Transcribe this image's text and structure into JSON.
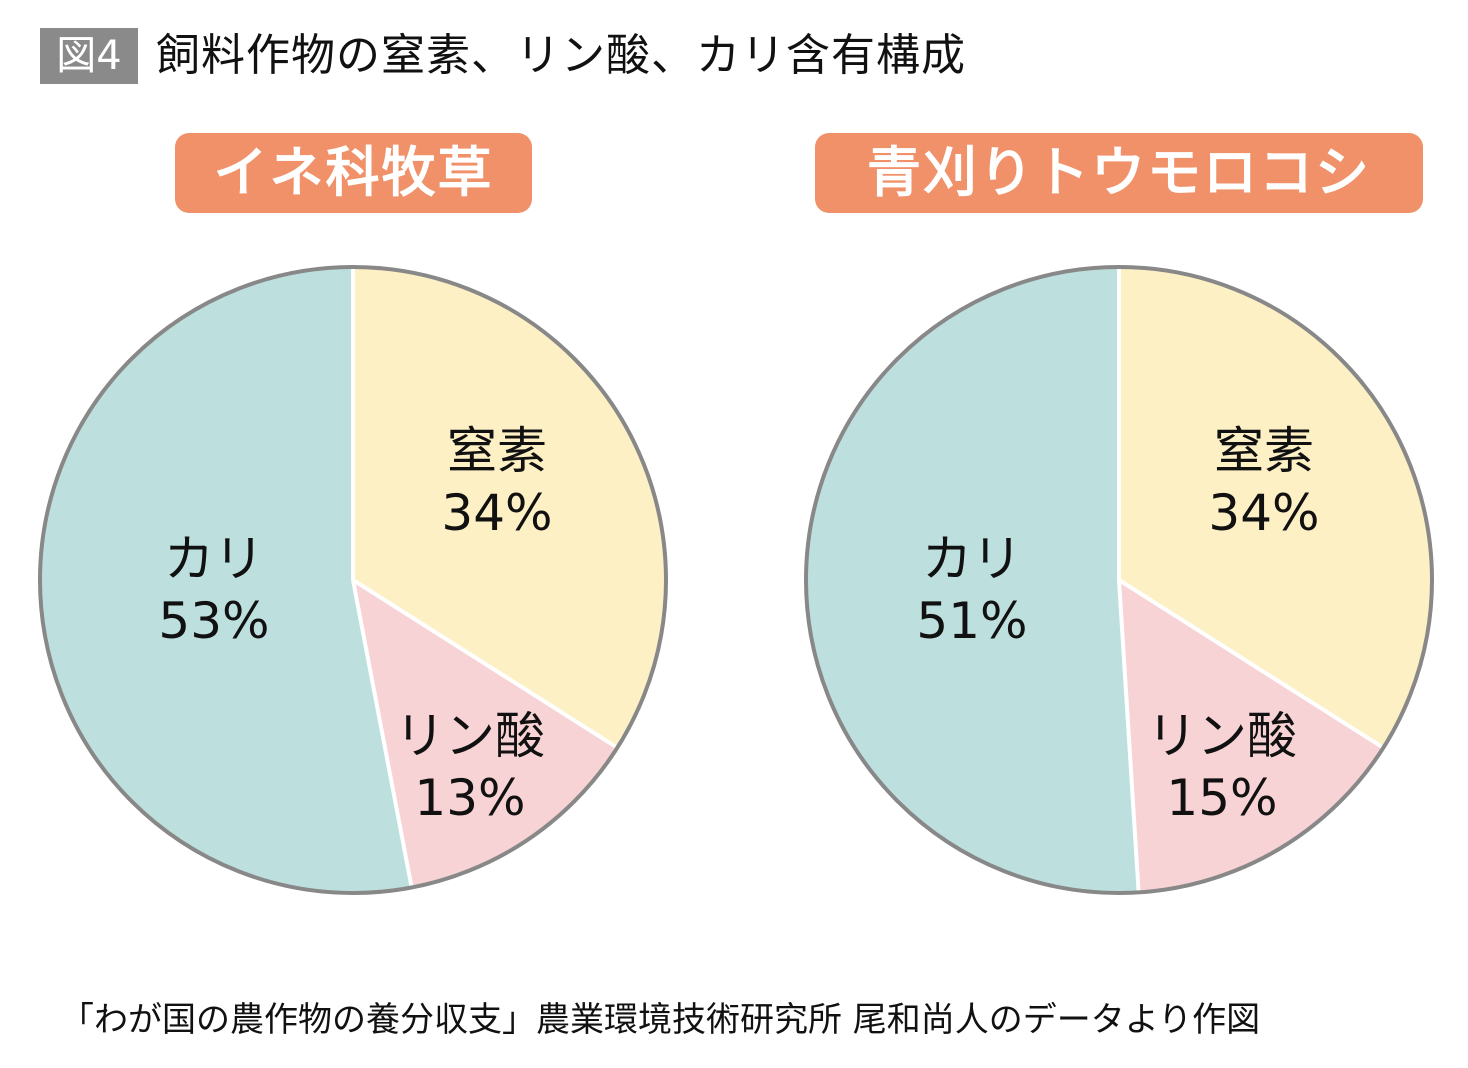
{
  "figure": {
    "badge": "図4",
    "title": "飼料作物の窒素、リン酸、カリ含有構成"
  },
  "colors": {
    "pill": "#f0916a",
    "outline": "#888888",
    "separator": "#ffffff"
  },
  "chart_data": [
    {
      "type": "pie",
      "title": "イネ科牧草",
      "start": "top",
      "direction": "clockwise",
      "slices": [
        {
          "label": "窒素",
          "value": 34,
          "text": "34%",
          "color": "#fdf0c5"
        },
        {
          "label": "リン酸",
          "value": 13,
          "text": "13%",
          "color": "#f7d3d5"
        },
        {
          "label": "カリ",
          "value": 53,
          "text": "53%",
          "color": "#bde0de"
        }
      ]
    },
    {
      "type": "pie",
      "title": "青刈りトウモロコシ",
      "start": "top",
      "direction": "clockwise",
      "slices": [
        {
          "label": "窒素",
          "value": 34,
          "text": "34%",
          "color": "#fdf0c5"
        },
        {
          "label": "リン酸",
          "value": 15,
          "text": "15%",
          "color": "#f7d3d5"
        },
        {
          "label": "カリ",
          "value": 51,
          "text": "51%",
          "color": "#bde0de"
        }
      ]
    }
  ],
  "footer": "「わが国の農作物の養分収支」農業環境技術研究所 尾和尚人のデータより作図"
}
